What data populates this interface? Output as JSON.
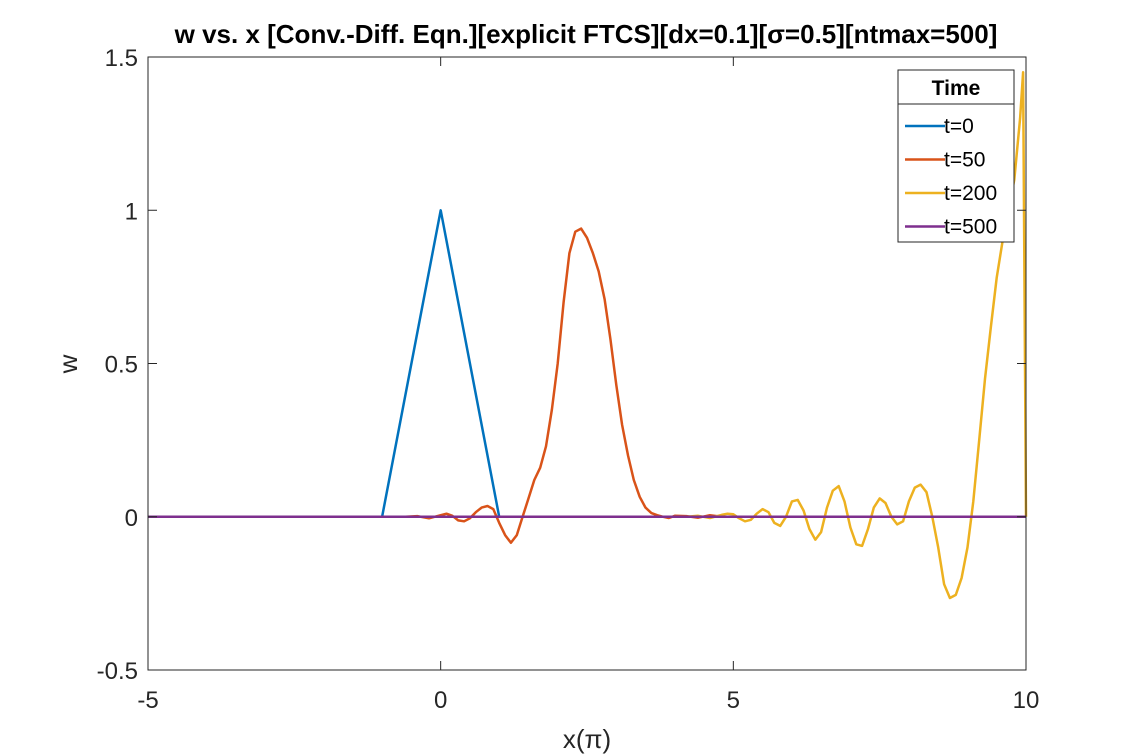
{
  "chart_data": {
    "type": "line",
    "title": "w vs. x [Conv.-Diff. Eqn.][explicit FTCS][dx=0.1][σ=0.5][ntmax=500]",
    "xlabel": "x(π)",
    "ylabel": "w",
    "xlim": [
      -5,
      10
    ],
    "ylim": [
      -0.5,
      1.5
    ],
    "xticks": [
      -5,
      0,
      5,
      10
    ],
    "xtick_labels": [
      "-5",
      "0",
      "5",
      "10"
    ],
    "yticks": [
      -0.5,
      0,
      0.5,
      1,
      1.5
    ],
    "ytick_labels": [
      "-0.5",
      "0",
      "0.5",
      "1",
      "1.5"
    ],
    "grid": false,
    "legend": {
      "title": "Time",
      "location": "top-right"
    },
    "series": [
      {
        "name": "t=0",
        "color": "#0072BD",
        "x": [
          -5,
          -1,
          0,
          1,
          10
        ],
        "y": [
          0,
          0,
          1,
          0,
          0
        ]
      },
      {
        "name": "t=50",
        "color": "#D95319",
        "x": [
          -5,
          -0.6,
          -0.4,
          -0.2,
          0,
          0.1,
          0.2,
          0.3,
          0.4,
          0.5,
          0.6,
          0.7,
          0.8,
          0.9,
          1.0,
          1.1,
          1.2,
          1.3,
          1.4,
          1.5,
          1.6,
          1.7,
          1.8,
          1.9,
          2.0,
          2.1,
          2.2,
          2.3,
          2.4,
          2.5,
          2.6,
          2.7,
          2.8,
          2.9,
          3.0,
          3.1,
          3.2,
          3.3,
          3.4,
          3.5,
          3.6,
          3.7,
          3.8,
          3.9,
          4.0,
          4.2,
          4.4,
          4.6,
          4.8,
          5.0,
          10
        ],
        "y": [
          0,
          0,
          0.002,
          -0.005,
          0.005,
          0.01,
          0.003,
          -0.012,
          -0.015,
          -0.005,
          0.015,
          0.03,
          0.035,
          0.025,
          -0.02,
          -0.06,
          -0.085,
          -0.06,
          0.0,
          0.06,
          0.12,
          0.16,
          0.23,
          0.35,
          0.5,
          0.7,
          0.86,
          0.93,
          0.94,
          0.91,
          0.86,
          0.8,
          0.71,
          0.58,
          0.43,
          0.3,
          0.2,
          0.12,
          0.065,
          0.03,
          0.012,
          0.005,
          0.0,
          -0.004,
          0.003,
          0.002,
          -0.003,
          0.005,
          0.0,
          0.0,
          0
        ]
      },
      {
        "name": "t=200",
        "color": "#EDB120",
        "x": [
          -5,
          4.2,
          4.4,
          4.6,
          4.8,
          4.9,
          5.0,
          5.1,
          5.2,
          5.3,
          5.4,
          5.5,
          5.6,
          5.7,
          5.8,
          5.9,
          6.0,
          6.1,
          6.2,
          6.3,
          6.4,
          6.5,
          6.6,
          6.7,
          6.8,
          6.9,
          7.0,
          7.1,
          7.2,
          7.3,
          7.4,
          7.5,
          7.6,
          7.7,
          7.8,
          7.9,
          8.0,
          8.1,
          8.2,
          8.3,
          8.4,
          8.5,
          8.6,
          8.7,
          8.8,
          8.9,
          9.0,
          9.1,
          9.2,
          9.3,
          9.4,
          9.5,
          9.6,
          9.7,
          9.8,
          9.9,
          9.95,
          10.0
        ],
        "y": [
          0,
          0,
          0.003,
          -0.004,
          0.006,
          0.01,
          0.008,
          -0.005,
          -0.015,
          -0.01,
          0.01,
          0.025,
          0.015,
          -0.02,
          -0.03,
          0.0,
          0.05,
          0.055,
          0.02,
          -0.04,
          -0.075,
          -0.05,
          0.03,
          0.085,
          0.1,
          0.05,
          -0.035,
          -0.09,
          -0.095,
          -0.04,
          0.03,
          0.06,
          0.045,
          0.0,
          -0.025,
          -0.015,
          0.05,
          0.095,
          0.105,
          0.08,
          0.0,
          -0.1,
          -0.22,
          -0.265,
          -0.255,
          -0.2,
          -0.1,
          0.05,
          0.25,
          0.45,
          0.62,
          0.78,
          0.9,
          1.0,
          1.1,
          1.3,
          1.45,
          0.0
        ]
      },
      {
        "name": "t=500",
        "color": "#7E2F8E",
        "x": [
          -5,
          10
        ],
        "y": [
          0,
          0
        ]
      }
    ]
  }
}
